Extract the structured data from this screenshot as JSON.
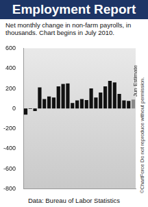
{
  "chart_data": {
    "type": "bar",
    "title": "Employment Report",
    "subtitle": "Net monthly change in non-farm payrolls, in thousands. Chart begins in July 2010.",
    "categories": [
      null,
      null,
      null,
      null,
      null,
      null,
      null,
      null,
      null,
      null,
      null,
      null,
      null,
      null,
      null,
      null,
      null,
      null,
      null,
      null,
      null,
      null,
      null,
      null
    ],
    "values": [
      -60,
      -5,
      -25,
      210,
      95,
      120,
      110,
      220,
      245,
      250,
      55,
      80,
      95,
      85,
      200,
      110,
      160,
      220,
      275,
      260,
      145,
      80,
      75,
      90
    ],
    "colors": [
      "#111111",
      "#111111",
      "#111111",
      "#111111",
      "#111111",
      "#111111",
      "#111111",
      "#111111",
      "#111111",
      "#111111",
      "#111111",
      "#111111",
      "#111111",
      "#111111",
      "#111111",
      "#111111",
      "#111111",
      "#111111",
      "#111111",
      "#111111",
      "#111111",
      "#111111",
      "#111111",
      "#8a8a8a"
    ],
    "ylim": [
      -800,
      600
    ],
    "yticks": [
      -800,
      -600,
      -400,
      -200,
      0,
      200,
      400,
      600
    ],
    "grid": false,
    "tick_labels": "y",
    "annotations": [
      "Jun Estimate",
      "©ChartForce  Do not reproduce without permission.",
      "Data: Bureau of Labor Statistics"
    ]
  }
}
